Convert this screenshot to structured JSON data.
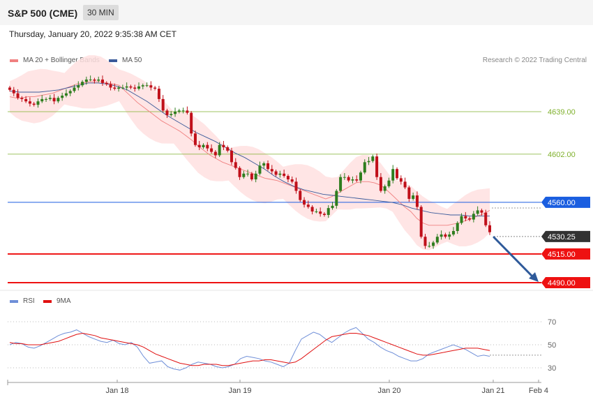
{
  "header": {
    "title": "S&P 500 (CME)",
    "interval": "30 MIN",
    "datetime": "Thursday, January 20, 2022 9:35:38 AM CET"
  },
  "legend": {
    "ma20": "MA 20 + Bollinger Bands",
    "ma50": "MA 50",
    "credit": "Research © 2022 Trading Central",
    "rsi": "RSI",
    "ma9": "9MA"
  },
  "colors": {
    "ma20": "#f08080",
    "ma50": "#3a5a9a",
    "band": "#ffe0e0",
    "up": "#2e7d1e",
    "down": "#c0101a",
    "support": "#ee1111",
    "resistance_green": "#7fb02c",
    "ma_level": "#1a5ee0",
    "current": "#333333",
    "rsi": "#6f8fd8",
    "rsi_ma": "#e01010"
  },
  "chart_data": [
    {
      "type": "candlestick",
      "title": "S&P 500 (CME)",
      "x_labels": [
        "Jan 18",
        "Jan 19",
        "Jan 20",
        "Jan 21",
        "Feb 4"
      ],
      "ylim": [
        4480,
        4700
      ],
      "levels": [
        {
          "label": "4639.00",
          "value": 4639.0,
          "style": "resistance"
        },
        {
          "label": "4602.00",
          "value": 4602.0,
          "style": "resistance"
        },
        {
          "label": "4560.00",
          "value": 4560.0,
          "style": "ma"
        },
        {
          "label": "4530.25",
          "value": 4530.25,
          "style": "current"
        },
        {
          "label": "4515.00",
          "value": 4515.0,
          "style": "support"
        },
        {
          "label": "4490.00",
          "value": 4490.0,
          "style": "support"
        }
      ],
      "close": [
        4658,
        4655,
        4651,
        4650,
        4648,
        4646,
        4645,
        4648,
        4650,
        4650,
        4651,
        4648,
        4651,
        4653,
        4655,
        4657,
        4660,
        4662,
        4665,
        4667,
        4667,
        4666,
        4667,
        4664,
        4663,
        4660,
        4659,
        4660,
        4660,
        4661,
        4660,
        4659,
        4661,
        4662,
        4662,
        4660,
        4659,
        4650,
        4640,
        4636,
        4637,
        4639,
        4640,
        4640,
        4638,
        4620,
        4610,
        4608,
        4610,
        4607,
        4604,
        4601,
        4610,
        4608,
        4605,
        4595,
        4590,
        4582,
        4585,
        4585,
        4580,
        4585,
        4592,
        4594,
        4589,
        4587,
        4584,
        4585,
        4583,
        4580,
        4578,
        4570,
        4562,
        4558,
        4556,
        4552,
        4552,
        4550,
        4549,
        4555,
        4557,
        4570,
        4582,
        4582,
        4579,
        4580,
        4579,
        4586,
        4595,
        4596,
        4600,
        4582,
        4570,
        4574,
        4579,
        4589,
        4581,
        4578,
        4573,
        4563,
        4566,
        4556,
        4530,
        4522,
        4522,
        4525,
        4530,
        4532,
        4530,
        4532,
        4535,
        4542,
        4548,
        4546,
        4545,
        4550,
        4553,
        4551,
        4540,
        4534
      ],
      "ma20": [
        4652,
        4651,
        4651,
        4652,
        4652,
        4653,
        4654,
        4655,
        4657,
        4659,
        4661,
        4663,
        4664,
        4665,
        4665,
        4665,
        4664,
        4663,
        4662,
        4657,
        4652,
        4647,
        4643,
        4639,
        4635,
        4631,
        4628,
        4625,
        4622,
        4618,
        4614,
        4609,
        4605,
        4601,
        4598,
        4595,
        4593,
        4591,
        4589,
        4587,
        4585,
        4583,
        4581,
        4580,
        4579,
        4577,
        4575,
        4573,
        4571,
        4569,
        4567,
        4565,
        4563,
        4565,
        4568,
        4571,
        4574,
        4577,
        4578,
        4578,
        4577,
        4575,
        4571,
        4566,
        4561,
        4556,
        4552,
        4546,
        4542,
        4540,
        4540,
        4540,
        4540,
        4541,
        4542,
        4544,
        4546,
        4548,
        4550,
        4553
      ],
      "ma50": [
        4657,
        4656,
        4656,
        4656,
        4657,
        4658,
        4660,
        4662,
        4664,
        4664,
        4663,
        4661,
        4658,
        4653,
        4648,
        4642,
        4636,
        4631,
        4626,
        4621,
        4617,
        4613,
        4608,
        4603,
        4599,
        4594,
        4589,
        4583,
        4578,
        4574,
        4571,
        4569,
        4567,
        4566,
        4565,
        4564,
        4563,
        4562,
        4561,
        4560,
        4558,
        4555,
        4553,
        4551,
        4550,
        4549,
        4549,
        4548,
        4548,
        4548
      ]
    },
    {
      "type": "line",
      "title": "RSI",
      "y_ticks": [
        70,
        50,
        30
      ],
      "ylim": [
        20,
        80
      ],
      "series": [
        {
          "name": "RSI",
          "values": [
            50,
            52,
            51,
            48,
            47,
            49,
            52,
            55,
            58,
            60,
            61,
            63,
            60,
            57,
            55,
            53,
            52,
            54,
            51,
            50,
            52,
            48,
            40,
            34,
            35,
            36,
            31,
            29,
            28,
            30,
            33,
            35,
            34,
            33,
            31,
            30,
            31,
            33,
            38,
            40,
            39,
            38,
            36,
            35,
            33,
            31,
            34,
            45,
            55,
            58,
            61,
            59,
            55,
            52,
            56,
            60,
            63,
            65,
            60,
            55,
            52,
            48,
            45,
            43,
            40,
            38,
            36,
            36,
            38,
            42,
            44,
            46,
            48,
            50,
            48,
            46,
            43,
            40,
            41,
            40
          ]
        },
        {
          "name": "9MA",
          "values": [
            52,
            51,
            51,
            50,
            50,
            50,
            51,
            52,
            53,
            55,
            57,
            59,
            60,
            59,
            58,
            56,
            55,
            54,
            53,
            52,
            51,
            50,
            48,
            45,
            42,
            40,
            38,
            36,
            34,
            33,
            32,
            32,
            33,
            33,
            33,
            32,
            32,
            33,
            34,
            35,
            36,
            36,
            37,
            37,
            36,
            35,
            34,
            35,
            38,
            42,
            46,
            50,
            54,
            57,
            58,
            59,
            60,
            60,
            59,
            58,
            56,
            54,
            52,
            50,
            48,
            46,
            44,
            42,
            41,
            41,
            42,
            43,
            44,
            45,
            46,
            47,
            47,
            47,
            46,
            45
          ]
        }
      ]
    }
  ]
}
